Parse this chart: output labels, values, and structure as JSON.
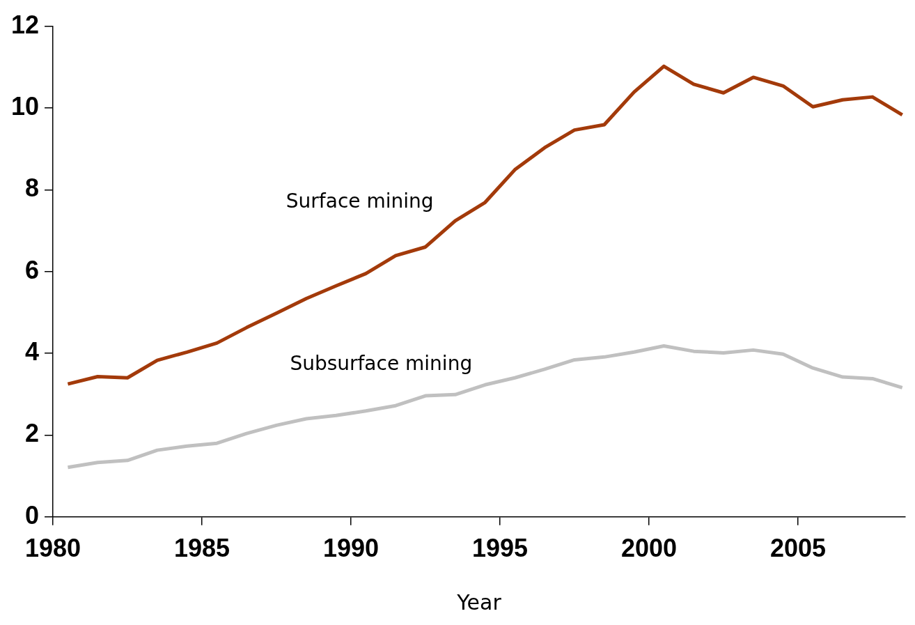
{
  "chart_data": {
    "type": "line",
    "xlabel": "Year",
    "x": [
      1980.5,
      1981.5,
      1982.5,
      1983.5,
      1984.5,
      1985.5,
      1986.5,
      1987.5,
      1988.5,
      1989.5,
      1990.5,
      1991.5,
      1992.5,
      1993.5,
      1994.5,
      1995.5,
      1996.5,
      1997.5,
      1998.5,
      1999.5,
      2000.5,
      2001.5,
      2002.5,
      2003.5,
      2004.5,
      2005.5,
      2006.5,
      2007.5,
      2008.5
    ],
    "series": [
      {
        "name": "Surface mining",
        "color": "#a33a0a",
        "values": [
          3.25,
          3.43,
          3.4,
          3.83,
          4.03,
          4.25,
          4.63,
          4.98,
          5.34,
          5.65,
          5.95,
          6.39,
          6.6,
          7.24,
          7.69,
          8.49,
          9.03,
          9.46,
          9.59,
          10.39,
          11.02,
          10.58,
          10.37,
          10.75,
          10.54,
          10.03,
          10.2,
          10.27,
          9.83
        ]
      },
      {
        "name": "Subsurface mining",
        "color": "#c0c0c0",
        "values": [
          1.21,
          1.33,
          1.38,
          1.63,
          1.73,
          1.8,
          2.04,
          2.24,
          2.4,
          2.48,
          2.59,
          2.72,
          2.96,
          2.99,
          3.23,
          3.4,
          3.61,
          3.84,
          3.91,
          4.03,
          4.18,
          4.05,
          4.01,
          4.08,
          3.98,
          3.64,
          3.42,
          3.38,
          3.16
        ]
      }
    ],
    "xlim": [
      1980,
      2008.6
    ],
    "xticks": [
      1980,
      1985,
      1990,
      1995,
      2000,
      2005
    ],
    "ylim": [
      0,
      12
    ],
    "yticks": [
      0,
      2,
      4,
      6,
      8,
      10,
      12
    ],
    "grid": false,
    "legend": false,
    "marker": "none",
    "line_style": "solid"
  }
}
